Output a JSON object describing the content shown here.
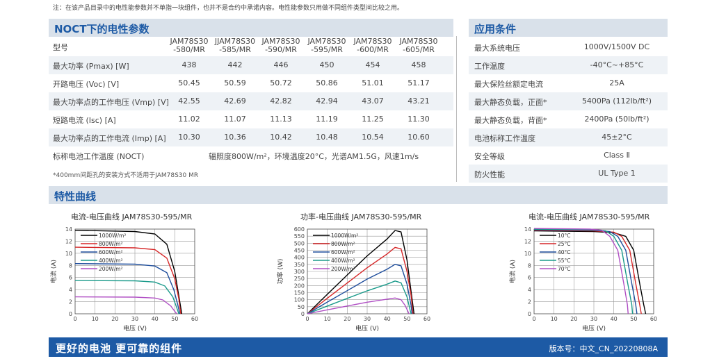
{
  "note": "注：在该产品目录中的电性能参数并不单指一块组件，也并不是合约中承诺内容。电性能参数只用做不同组件类型间比较之用。",
  "nocl": {
    "title": "NOCT下的电性参数",
    "model_label": "型号",
    "models": [
      {
        "l1": "JAM78S30",
        "l2": "-580/MR"
      },
      {
        "l1": "JJAM78S30",
        "l2": "-585/MR"
      },
      {
        "l1": "JAM78S30",
        "l2": "-590/MR"
      },
      {
        "l1": "JAM78S30",
        "l2": "-595/MR"
      },
      {
        "l1": "JAM78S30",
        "l2": "-600/MR"
      },
      {
        "l1": "JAM78S30",
        "l2": "-605/MR"
      }
    ],
    "rows": [
      {
        "label": "最大功率 (Pmax) [W]",
        "values": [
          "438",
          "442",
          "446",
          "450",
          "454",
          "458"
        ]
      },
      {
        "label": "开路电压 (Voc) [V]",
        "values": [
          "50.45",
          "50.59",
          "50.72",
          "50.86",
          "51.01",
          "51.17"
        ]
      },
      {
        "label": "最大功率点的工作电压 (Vmp) [V]",
        "values": [
          "42.55",
          "42.69",
          "42.82",
          "42.94",
          "43.07",
          "43.21"
        ]
      },
      {
        "label": "短路电流 (Isc) [A]",
        "values": [
          "11.02",
          "11.07",
          "11.13",
          "11.19",
          "11.25",
          "11.30"
        ]
      },
      {
        "label": "最大功率点的工作电流 (Imp) [A]",
        "values": [
          "10.30",
          "10.36",
          "10.42",
          "10.48",
          "10.54",
          "10.60"
        ]
      }
    ],
    "noct_label": "标称电池工作温度 (NOCT)",
    "noct_value": "辐照度800W/m²，环境温度20°C，光谱AM1.5G，风速1m/s",
    "footnote": "*400mm间距孔的安装方式不适用于JAM78S30 MR"
  },
  "app": {
    "title": "应用条件",
    "rows": [
      {
        "label": "最大系统电压",
        "value": "1000V/1500V DC"
      },
      {
        "label": "工作温度",
        "value": "-40°C~+85°C"
      },
      {
        "label": "最大保险丝额定电流",
        "value": "25A"
      },
      {
        "label": "最大静态负载，正面*",
        "value": "5400Pa (112lb/ft²)"
      },
      {
        "label": "最大静态负载，背面*",
        "value": "2400Pa (50lb/ft²)"
      },
      {
        "label": "电池标称工作温度",
        "value": "45±2°C"
      },
      {
        "label": "安全等级",
        "value": "Class Ⅱ"
      },
      {
        "label": "防火性能",
        "value": "UL Type 1"
      }
    ]
  },
  "curves_title": "特性曲线",
  "chart_data": [
    {
      "type": "line",
      "title": "电流-电压曲线    JAM78S30-595/MR",
      "xlabel": "电压 (V)",
      "ylabel": "电流 (A)",
      "xlim": [
        0,
        60
      ],
      "ylim": [
        0,
        14
      ],
      "xticks": [
        0,
        10,
        20,
        30,
        40,
        50,
        60
      ],
      "yticks": [
        0,
        2,
        4,
        6,
        8,
        10,
        12,
        14
      ],
      "legend_position": "top-left",
      "series": [
        {
          "name": "1000W/m²",
          "color": "#000000",
          "x": [
            0,
            30,
            40,
            46,
            50,
            52,
            53.5
          ],
          "y": [
            13.8,
            13.6,
            13.2,
            11.5,
            7,
            3,
            0
          ]
        },
        {
          "name": "800W/m²",
          "color": "#d62728",
          "x": [
            0,
            30,
            40,
            46,
            50,
            52,
            53
          ],
          "y": [
            11.0,
            10.9,
            10.6,
            9.2,
            5.8,
            2.5,
            0
          ]
        },
        {
          "name": "600W/m²",
          "color": "#1f4e9c",
          "x": [
            0,
            30,
            40,
            46,
            49.5,
            51.5,
            52.5
          ],
          "y": [
            8.3,
            8.2,
            7.9,
            6.8,
            4,
            1.5,
            0
          ]
        },
        {
          "name": "400W/m²",
          "color": "#1a9a8a",
          "x": [
            0,
            30,
            40,
            45,
            49,
            51,
            52
          ],
          "y": [
            5.5,
            5.45,
            5.25,
            4.6,
            2.8,
            1,
            0
          ]
        },
        {
          "name": "200W/m²",
          "color": "#b04fc4",
          "x": [
            0,
            30,
            40,
            44,
            48,
            50,
            51
          ],
          "y": [
            2.8,
            2.75,
            2.6,
            2.3,
            1.3,
            0.4,
            0
          ]
        }
      ]
    },
    {
      "type": "line",
      "title": "功率-电压曲线    JAM78S30-595/MR",
      "xlabel": "电压 (V)",
      "ylabel": "功率 (W)",
      "xlim": [
        0,
        60
      ],
      "ylim": [
        0,
        600
      ],
      "xticks": [
        0,
        10,
        20,
        30,
        40,
        50,
        60
      ],
      "yticks": [
        0,
        50,
        100,
        150,
        200,
        250,
        300,
        350,
        400,
        450,
        500,
        550,
        600
      ],
      "legend_position": "top-left",
      "series": [
        {
          "name": "1000W/m²",
          "color": "#000000",
          "x": [
            0,
            10,
            20,
            30,
            40,
            44,
            47,
            50,
            52,
            53.5
          ],
          "y": [
            0,
            138,
            275,
            410,
            530,
            590,
            580,
            380,
            160,
            0
          ]
        },
        {
          "name": "800W/m²",
          "color": "#d62728",
          "x": [
            0,
            10,
            20,
            30,
            40,
            44,
            47,
            50,
            52,
            53
          ],
          "y": [
            0,
            110,
            218,
            326,
            424,
            470,
            460,
            300,
            130,
            0
          ]
        },
        {
          "name": "600W/m²",
          "color": "#1f4e9c",
          "x": [
            0,
            10,
            20,
            30,
            40,
            44,
            47,
            50,
            52,
            52.5
          ],
          "y": [
            0,
            83,
            164,
            246,
            316,
            350,
            340,
            210,
            60,
            0
          ]
        },
        {
          "name": "400W/m²",
          "color": "#1a9a8a",
          "x": [
            0,
            10,
            20,
            30,
            40,
            44,
            47,
            50,
            51.5,
            52
          ],
          "y": [
            0,
            55,
            109,
            163,
            210,
            232,
            220,
            120,
            30,
            0
          ]
        },
        {
          "name": "200W/m²",
          "color": "#b04fc4",
          "x": [
            0,
            10,
            20,
            30,
            40,
            44,
            47,
            49,
            50.5,
            51
          ],
          "y": [
            0,
            28,
            55,
            82,
            104,
            112,
            100,
            60,
            15,
            0
          ]
        }
      ]
    },
    {
      "type": "line",
      "title": "电流-电压曲线    JAM78S30-595/MR",
      "xlabel": "电压 (V)",
      "ylabel": "电流 (A)",
      "xlim": [
        0,
        60
      ],
      "ylim": [
        0,
        14
      ],
      "xticks": [
        0,
        10,
        20,
        30,
        40,
        50,
        60
      ],
      "yticks": [
        0,
        2,
        4,
        6,
        8,
        10,
        12,
        14
      ],
      "legend_position": "top-left",
      "series": [
        {
          "name": "10°C",
          "color": "#000000",
          "x": [
            0,
            30,
            40,
            46,
            50,
            53,
            55,
            56
          ],
          "y": [
            13.7,
            13.6,
            13.4,
            12.8,
            10.5,
            5,
            1.5,
            0
          ]
        },
        {
          "name": "25°C",
          "color": "#d62728",
          "x": [
            0,
            30,
            40,
            44,
            48,
            51,
            53,
            53.8
          ],
          "y": [
            13.8,
            13.7,
            13.5,
            12.8,
            10.5,
            5,
            1.5,
            0
          ]
        },
        {
          "name": "40°C",
          "color": "#1f4e9c",
          "x": [
            0,
            30,
            38,
            42,
            46,
            49,
            51,
            51.6
          ],
          "y": [
            13.9,
            13.8,
            13.6,
            12.8,
            10.5,
            5,
            1.5,
            0
          ]
        },
        {
          "name": "55°C",
          "color": "#1a9a8a",
          "x": [
            0,
            30,
            36,
            40,
            44,
            47,
            49,
            49.4
          ],
          "y": [
            14.0,
            13.9,
            13.7,
            12.8,
            10.5,
            5,
            1.5,
            0
          ]
        },
        {
          "name": "70°C",
          "color": "#b04fc4",
          "x": [
            0,
            28,
            34,
            38,
            42,
            45,
            46.8,
            47.2
          ],
          "y": [
            14.1,
            14.0,
            13.8,
            12.8,
            10.5,
            5,
            1.5,
            0
          ]
        }
      ]
    }
  ],
  "footer": {
    "slogan": "更好的电池 更可靠的组件",
    "version": "版本号：中文_CN_20220808A"
  }
}
